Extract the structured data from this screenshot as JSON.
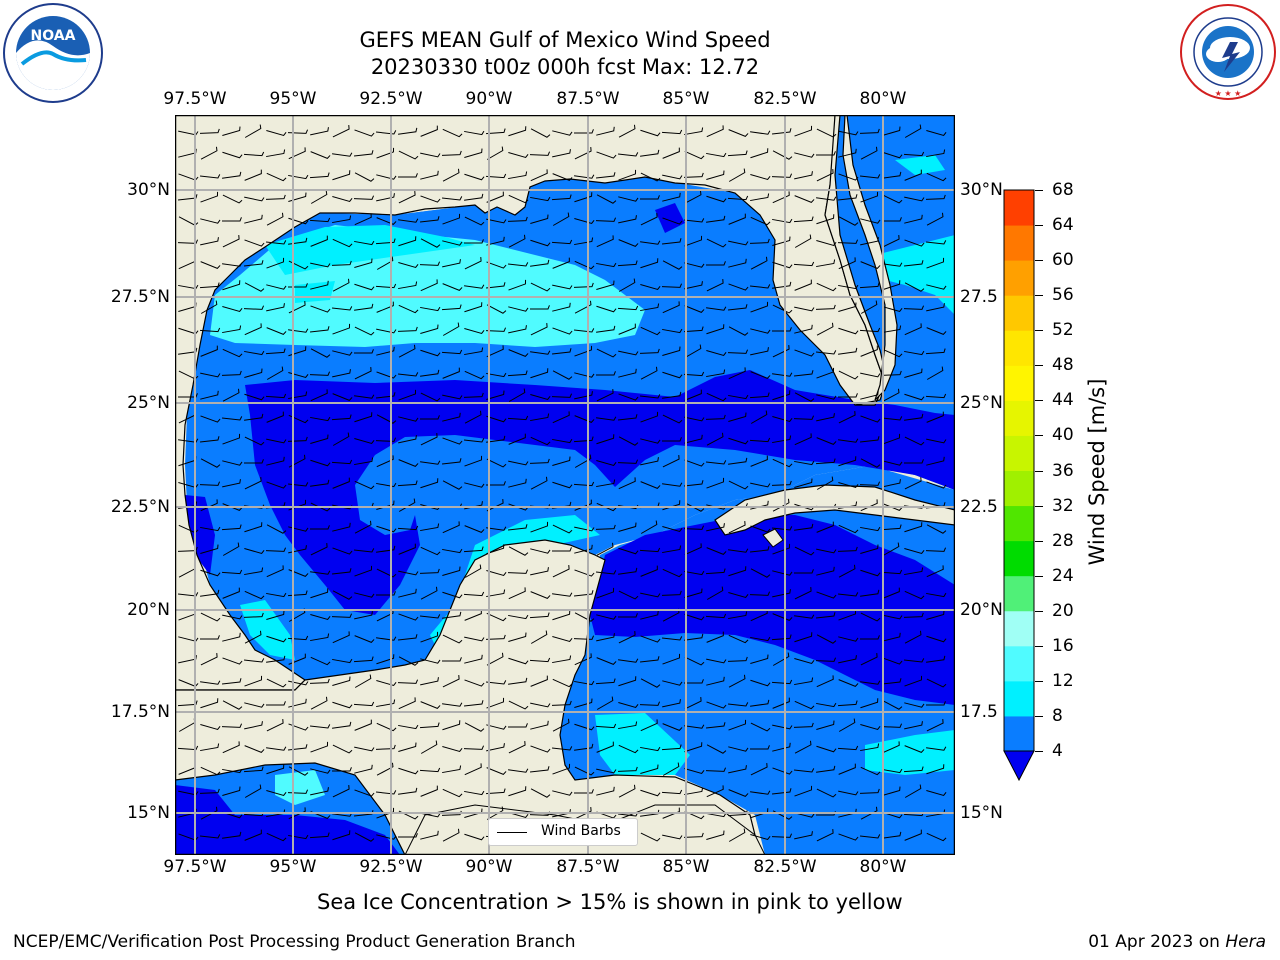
{
  "title": {
    "line1": "GEFS MEAN Gulf of Mexico Wind Speed",
    "line2": "20230330 t00z 000h fcst   Max: 12.72"
  },
  "logos": {
    "noaa_text": "NOAA",
    "noaa_ring": "NATIONAL OCEANIC AND ATMOSPHERIC ADMINISTRATION · U.S. DEPARTMENT OF COMMERCE",
    "nws_ring": "NATIONAL WEATHER SERVICE"
  },
  "map": {
    "lon_ticks": [
      "97.5°W",
      "95°W",
      "92.5°W",
      "90°W",
      "87.5°W",
      "85°W",
      "82.5°W",
      "80°W"
    ],
    "lat_ticks_left": [
      "30°N",
      "27.5°N",
      "25°N",
      "22.5°N",
      "20°N",
      "17.5°N",
      "15°N"
    ],
    "lat_ticks_right": [
      "30°N",
      "27.5",
      "25°N",
      "22.5",
      "20°N",
      "17.5",
      "15°N"
    ],
    "legend_label": "Wind Barbs",
    "colors": {
      "land": "#eeeddc",
      "ws_4_8": "#0a7dff",
      "ws_below_4": "#0000f0",
      "ws_8_12": "#00f0ff",
      "ws_12_16": "#50fbff",
      "grid": "#b0b0b0"
    }
  },
  "colorbar": {
    "label": "Wind Speed [m/s]",
    "ticks": [
      "4",
      "8",
      "12",
      "16",
      "20",
      "24",
      "28",
      "32",
      "36",
      "40",
      "44",
      "48",
      "52",
      "56",
      "60",
      "64",
      "68"
    ],
    "colors": [
      "#0a7dff",
      "#00f0ff",
      "#50fbff",
      "#a0fff5",
      "#50f078",
      "#00dc00",
      "#50e600",
      "#a0f000",
      "#c8f500",
      "#e6f500",
      "#fff500",
      "#ffe600",
      "#ffc800",
      "#ffa000",
      "#ff7800",
      "#ff4000",
      "#ff0000"
    ],
    "under_color": "#0000f0"
  },
  "footer": {
    "note": "Sea Ice Concentration > 15% is shown in pink to yellow",
    "left": "NCEP/EMC/Verification Post Processing Product Generation Branch",
    "right_date": "01 Apr 2023 on ",
    "right_machine": "Hera"
  }
}
